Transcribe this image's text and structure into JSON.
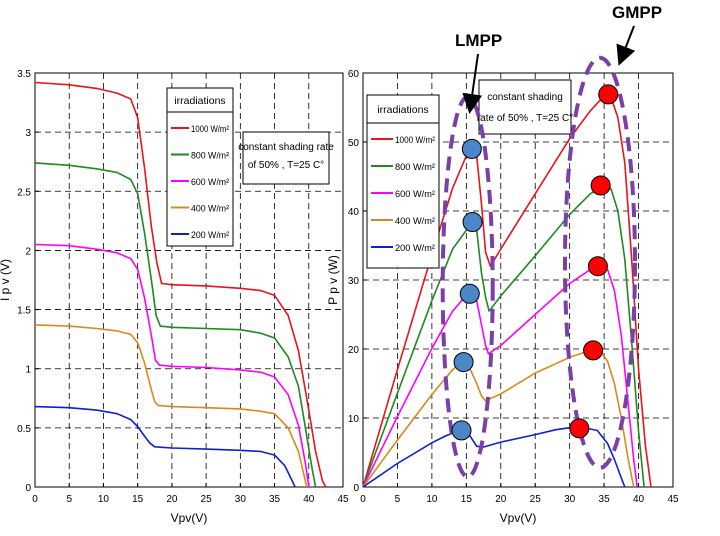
{
  "chart_data": [
    {
      "type": "line",
      "xlabel": "Vpv(V)",
      "ylabel": "I p v (V)",
      "xlim": [
        0,
        45
      ],
      "ylim": [
        0,
        3.5
      ],
      "xticks": [
        0,
        5,
        10,
        15,
        20,
        25,
        30,
        35,
        40,
        45
      ],
      "yticks": [
        0,
        0.5,
        1,
        1.5,
        2,
        2.5,
        3,
        3.5
      ],
      "grid": true,
      "legend": {
        "title": "irradiations",
        "placement": "top-center"
      },
      "annotation": [
        "constant shading rate",
        "of 50% , T=25 C°"
      ],
      "series": [
        {
          "name": "1000 W/m²",
          "color": "#e8141c",
          "points": [
            [
              0,
              3.42
            ],
            [
              5,
              3.4
            ],
            [
              9,
              3.37
            ],
            [
              12,
              3.33
            ],
            [
              14,
              3.28
            ],
            [
              15,
              3.12
            ],
            [
              16,
              2.7
            ],
            [
              17,
              2.2
            ],
            [
              17.8,
              1.9
            ],
            [
              18.5,
              1.72
            ],
            [
              20,
              1.71
            ],
            [
              25,
              1.7
            ],
            [
              30,
              1.68
            ],
            [
              33,
              1.66
            ],
            [
              35,
              1.62
            ],
            [
              37,
              1.45
            ],
            [
              38.5,
              1.15
            ],
            [
              40,
              0.65
            ],
            [
              41,
              0.3
            ],
            [
              42,
              0.05
            ],
            [
              42.5,
              0
            ]
          ]
        },
        {
          "name": "800 W/m²",
          "color": "#1f8a1f",
          "points": [
            [
              0,
              2.74
            ],
            [
              5,
              2.72
            ],
            [
              9,
              2.69
            ],
            [
              12,
              2.66
            ],
            [
              14,
              2.6
            ],
            [
              15,
              2.48
            ],
            [
              16,
              2.15
            ],
            [
              17,
              1.75
            ],
            [
              17.7,
              1.45
            ],
            [
              18.3,
              1.36
            ],
            [
              20,
              1.35
            ],
            [
              25,
              1.34
            ],
            [
              30,
              1.33
            ],
            [
              33,
              1.3
            ],
            [
              35,
              1.26
            ],
            [
              37,
              1.1
            ],
            [
              38.5,
              0.85
            ],
            [
              39.5,
              0.5
            ],
            [
              40.5,
              0.15
            ],
            [
              41,
              0
            ]
          ]
        },
        {
          "name": "600 W/m²",
          "color": "#ff00ff",
          "points": [
            [
              0,
              2.05
            ],
            [
              5,
              2.04
            ],
            [
              9,
              2.01
            ],
            [
              12,
              1.98
            ],
            [
              14,
              1.93
            ],
            [
              15,
              1.84
            ],
            [
              16,
              1.6
            ],
            [
              17,
              1.28
            ],
            [
              17.6,
              1.07
            ],
            [
              18.2,
              1.03
            ],
            [
              20,
              1.02
            ],
            [
              25,
              1.01
            ],
            [
              30,
              0.99
            ],
            [
              33,
              0.97
            ],
            [
              35,
              0.93
            ],
            [
              37,
              0.78
            ],
            [
              38.5,
              0.52
            ],
            [
              39.5,
              0.2
            ],
            [
              40,
              0
            ]
          ]
        },
        {
          "name": "400 W/m²",
          "color": "#d98a18",
          "points": [
            [
              0,
              1.37
            ],
            [
              5,
              1.36
            ],
            [
              9,
              1.34
            ],
            [
              12,
              1.32
            ],
            [
              14,
              1.29
            ],
            [
              15,
              1.22
            ],
            [
              16,
              1.05
            ],
            [
              17,
              0.82
            ],
            [
              17.5,
              0.72
            ],
            [
              18,
              0.69
            ],
            [
              20,
              0.68
            ],
            [
              25,
              0.67
            ],
            [
              30,
              0.66
            ],
            [
              33,
              0.64
            ],
            [
              35,
              0.62
            ],
            [
              37,
              0.5
            ],
            [
              38.5,
              0.3
            ],
            [
              39.3,
              0.1
            ],
            [
              39.7,
              0
            ]
          ]
        },
        {
          "name": "200 W/m²",
          "color": "#0d1fd6",
          "points": [
            [
              0,
              0.68
            ],
            [
              5,
              0.67
            ],
            [
              9,
              0.65
            ],
            [
              12,
              0.62
            ],
            [
              14,
              0.57
            ],
            [
              15,
              0.51
            ],
            [
              16,
              0.43
            ],
            [
              16.8,
              0.37
            ],
            [
              17.5,
              0.34
            ],
            [
              20,
              0.33
            ],
            [
              25,
              0.32
            ],
            [
              30,
              0.31
            ],
            [
              33,
              0.3
            ],
            [
              35,
              0.27
            ],
            [
              36.5,
              0.18
            ],
            [
              37.5,
              0.06
            ],
            [
              38,
              0
            ]
          ]
        }
      ]
    },
    {
      "type": "line",
      "xlabel": "Vpv(V)",
      "ylabel": "P p v (W)",
      "xlim": [
        0,
        45
      ],
      "ylim": [
        0,
        60
      ],
      "xticks": [
        0,
        5,
        10,
        15,
        20,
        25,
        30,
        35,
        40,
        45
      ],
      "yticks": [
        0,
        10,
        20,
        30,
        40,
        50,
        60
      ],
      "grid": true,
      "legend": {
        "title": "irradiations",
        "placement": "top-left"
      },
      "annotation": [
        "constant shading",
        "rate of 50% , T=25 C°"
      ],
      "series": [
        {
          "name": "1000 W/m²",
          "color": "#e8141c",
          "points": [
            [
              0,
              0
            ],
            [
              5,
              17
            ],
            [
              10,
              33.7
            ],
            [
              13,
              43.3
            ],
            [
              15,
              48
            ],
            [
              16,
              49.3
            ],
            [
              16.5,
              48
            ],
            [
              17.2,
              41
            ],
            [
              17.8,
              34
            ],
            [
              18.5,
              32
            ],
            [
              20,
              34.5
            ],
            [
              25,
              42.5
            ],
            [
              30,
              50.5
            ],
            [
              33,
              54.5
            ],
            [
              35,
              56.7
            ],
            [
              36,
              56.5
            ],
            [
              37,
              53.5
            ],
            [
              38,
              47
            ],
            [
              39,
              33
            ],
            [
              40,
              17
            ],
            [
              41,
              6
            ],
            [
              41.8,
              0
            ]
          ]
        },
        {
          "name": "800 W/m²",
          "color": "#1f8a1f",
          "points": [
            [
              0,
              0
            ],
            [
              5,
              13.6
            ],
            [
              10,
              27
            ],
            [
              13,
              34.5
            ],
            [
              15,
              37.2
            ],
            [
              16,
              38.3
            ],
            [
              16.5,
              37.2
            ],
            [
              17.2,
              31
            ],
            [
              17.8,
              27.5
            ],
            [
              18.3,
              25.5
            ],
            [
              20,
              27.7
            ],
            [
              25,
              33.5
            ],
            [
              30,
              39.5
            ],
            [
              33,
              42.5
            ],
            [
              35,
              43.7
            ],
            [
              36,
              43.2
            ],
            [
              37,
              40
            ],
            [
              38,
              33
            ],
            [
              39,
              21
            ],
            [
              40,
              8
            ],
            [
              40.8,
              0
            ]
          ]
        },
        {
          "name": "600 W/m²",
          "color": "#ff00ff",
          "points": [
            [
              0,
              0
            ],
            [
              5,
              10.2
            ],
            [
              10,
              20.1
            ],
            [
              13,
              25.5
            ],
            [
              15,
              27.8
            ],
            [
              16,
              28
            ],
            [
              16.5,
              27
            ],
            [
              17.2,
              23.5
            ],
            [
              17.8,
              20.5
            ],
            [
              18.2,
              19.3
            ],
            [
              20,
              20.5
            ],
            [
              25,
              25
            ],
            [
              30,
              29.5
            ],
            [
              33,
              31.5
            ],
            [
              34.5,
              32.2
            ],
            [
              35.5,
              31.5
            ],
            [
              36.5,
              28.5
            ],
            [
              37.5,
              22
            ],
            [
              38.5,
              12
            ],
            [
              39.3,
              4
            ],
            [
              39.8,
              0
            ]
          ]
        },
        {
          "name": "400 W/m²",
          "color": "#d98a18",
          "points": [
            [
              0,
              0
            ],
            [
              5,
              6.8
            ],
            [
              10,
              13.4
            ],
            [
              13,
              17
            ],
            [
              14.5,
              18.2
            ],
            [
              15.5,
              17.2
            ],
            [
              16.5,
              15
            ],
            [
              17.2,
              13.2
            ],
            [
              17.8,
              12.5
            ],
            [
              20,
              13.5
            ],
            [
              25,
              16.5
            ],
            [
              30,
              18.8
            ],
            [
              33,
              19.8
            ],
            [
              34.5,
              19.6
            ],
            [
              35.5,
              18.2
            ],
            [
              36.5,
              15
            ],
            [
              37.5,
              10
            ],
            [
              38.5,
              4
            ],
            [
              39.3,
              0
            ]
          ]
        },
        {
          "name": "200 W/m²",
          "color": "#0d1fd6",
          "points": [
            [
              0,
              0
            ],
            [
              5,
              3.4
            ],
            [
              10,
              6.4
            ],
            [
              12,
              7.4
            ],
            [
              14,
              8.2
            ],
            [
              15,
              8.2
            ],
            [
              15.8,
              7
            ],
            [
              16.5,
              5.9
            ],
            [
              17.5,
              5.8
            ],
            [
              20,
              6.5
            ],
            [
              25,
              7.6
            ],
            [
              28,
              8.3
            ],
            [
              30,
              8.6
            ],
            [
              32.5,
              8.5
            ],
            [
              34,
              8.2
            ],
            [
              35.5,
              6.3
            ],
            [
              36.5,
              4
            ],
            [
              37.5,
              1.3
            ],
            [
              38,
              0
            ]
          ]
        }
      ],
      "markers": {
        "lmpp": [
          [
            15.8,
            49
          ],
          [
            15.9,
            38.4
          ],
          [
            15.5,
            28
          ],
          [
            14.6,
            18.1
          ],
          [
            14.3,
            8.2
          ]
        ],
        "gmpp": [
          [
            35.6,
            56.9
          ],
          [
            34.5,
            43.7
          ],
          [
            34.1,
            32
          ],
          [
            33.4,
            19.8
          ],
          [
            31.4,
            8.5
          ]
        ],
        "lmpp_color": "#4a86c8",
        "gmpp_color": "#ff0000",
        "ellipse_color": "#7b3fa8"
      }
    }
  ],
  "labels": {
    "lmpp": "LMPP",
    "gmpp": "GMPP"
  }
}
